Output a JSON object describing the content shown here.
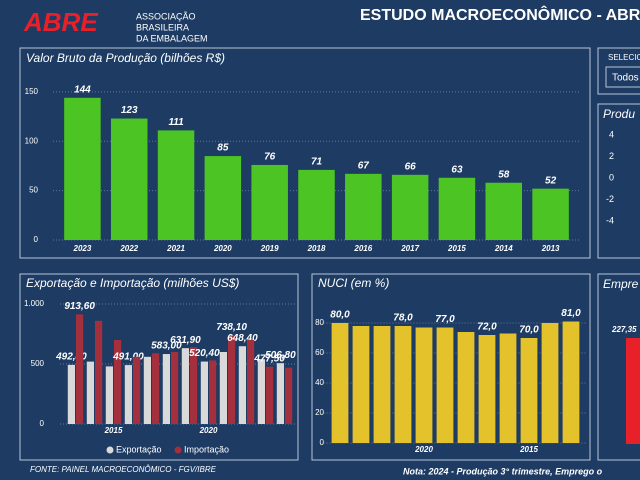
{
  "header": {
    "logo": "ABRE",
    "logo_caption": [
      "ASSOCIAÇÃO",
      "BRASILEIRA",
      "DA EMBALAGEM"
    ],
    "title": "ESTUDO MACROECONÔMICO - ABR"
  },
  "filter": {
    "label": "SELECIO",
    "value": "Todos"
  },
  "production_panel": {
    "title": "Produ",
    "yticks": [
      4,
      2,
      0,
      -2,
      -4
    ]
  },
  "employment_panel": {
    "title": "Empre",
    "values": [
      227.35
    ],
    "value_labels": [
      "227,35"
    ],
    "color": "#e8202a"
  },
  "footer": {
    "source": "FONTE: PAINEL MACROECONÔMICO - FGV/IBRE",
    "note": "Nota: 2024 - Produção 3° trimestre, Emprego o"
  },
  "chart_data": [
    {
      "type": "bar",
      "title": "Valor Bruto da Produção (bilhões R$)",
      "categories": [
        "2023",
        "2022",
        "2021",
        "2020",
        "2019",
        "2018",
        "2016",
        "2017",
        "2015",
        "2014",
        "2013"
      ],
      "values": [
        144,
        123,
        111,
        85,
        76,
        71,
        67,
        66,
        63,
        58,
        52
      ],
      "color": "#4cc424",
      "ylim": [
        0,
        160
      ],
      "yticks": [
        0,
        50,
        100,
        150
      ],
      "grid": true
    },
    {
      "type": "bar",
      "title": "Exportação e Importação (milhões US$)",
      "categories": [
        null,
        null,
        "2015",
        null,
        null,
        null,
        null,
        "2020",
        null,
        null,
        null,
        null
      ],
      "series": [
        {
          "name": "Exportação",
          "color": "#d9d9d9",
          "values": [
            492.8,
            520,
            480,
            491,
            560,
            583,
            631.9,
            520.4,
            600,
            648.4,
            540,
            506.8
          ],
          "value_labels": [
            "492,80",
            null,
            null,
            "491,00",
            null,
            "583,00",
            "631,90",
            "520,40",
            null,
            "648,40",
            null,
            "506,80"
          ]
        },
        {
          "name": "Importação",
          "color": "#a3303c",
          "values": [
            913.6,
            860,
            700,
            560,
            590,
            600,
            640,
            530,
            738.1,
            700,
            477.5,
            470
          ],
          "value_labels": [
            "913,60",
            null,
            null,
            null,
            null,
            null,
            null,
            null,
            "738,10",
            null,
            "477,50",
            null
          ]
        }
      ],
      "ylim": [
        0,
        1000
      ],
      "yticks": [
        0,
        500,
        {
          "value": 1000,
          "label": "1.000"
        }
      ],
      "grid": true,
      "legend": "bottom"
    },
    {
      "type": "bar",
      "title": "NUCI (em %)",
      "categories": [
        null,
        null,
        null,
        null,
        "2020",
        null,
        null,
        null,
        null,
        "2015",
        null,
        null
      ],
      "values": [
        80,
        78,
        78,
        78,
        77,
        77,
        74,
        72,
        73,
        70,
        80,
        81
      ],
      "value_labels": [
        "80,0",
        null,
        null,
        "78,0",
        null,
        "77,0",
        null,
        "72,0",
        null,
        "70,0",
        null,
        "81,0"
      ],
      "color": "#e3c22c",
      "ylim": [
        0,
        90
      ],
      "yticks": [
        0,
        20,
        40,
        60,
        80
      ],
      "grid": true
    }
  ]
}
